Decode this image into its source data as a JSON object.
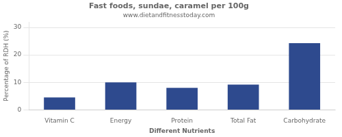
{
  "chart_data": {
    "type": "bar",
    "title": "Fast foods, sundae, caramel per 100g",
    "subtitle": "www.dietandfitnesstoday.com",
    "xlabel": "Different Nutrients",
    "ylabel": "Percentage of RDH (%)",
    "categories": [
      "Vitamin C",
      "Energy",
      "Protein",
      "Total Fat",
      "Carbohydrate"
    ],
    "values": [
      4.5,
      10.0,
      8.0,
      9.2,
      24.3
    ],
    "color": "#2e4a8e",
    "ylim": [
      0,
      32
    ],
    "yticks": [
      0,
      10,
      20,
      30
    ],
    "grid": true
  }
}
